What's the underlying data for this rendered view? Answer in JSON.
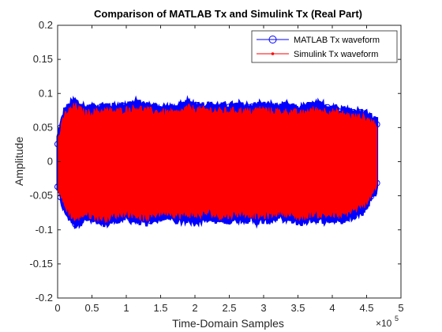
{
  "chart_data": {
    "type": "line",
    "title": "Comparison of MATLAB Tx and Simulink Tx (Real Part)",
    "xlabel": "Time-Domain Samples",
    "ylabel": "Amplitude",
    "x_exponent": "×10",
    "x_exponent_power": "5",
    "xlim": [
      0,
      500000
    ],
    "ylim": [
      -0.2,
      0.2
    ],
    "xticks": [
      0,
      50000,
      100000,
      150000,
      200000,
      250000,
      300000,
      350000,
      400000,
      450000,
      500000
    ],
    "xtick_labels": [
      "0",
      "0.5",
      "1",
      "1.5",
      "2",
      "2.5",
      "3",
      "3.5",
      "4",
      "4.5",
      "5"
    ],
    "yticks": [
      -0.2,
      -0.15,
      -0.1,
      -0.05,
      0,
      0.05,
      0.1,
      0.15,
      0.2
    ],
    "ytick_labels": [
      "-0.2",
      "-0.15",
      "-0.1",
      "-0.05",
      "0",
      "0.05",
      "0.1",
      "0.15",
      "0.2"
    ],
    "grid": false,
    "legend_position": "top-right",
    "series": [
      {
        "name": "MATLAB Tx waveform",
        "color": "#0000ff",
        "marker": "circle",
        "x_range": [
          0,
          465000
        ],
        "envelope_x": [
          0,
          10000,
          25000,
          40000,
          55000,
          70000,
          85000,
          100000,
          115000,
          130000,
          145000,
          160000,
          175000,
          190000,
          205000,
          220000,
          235000,
          250000,
          265000,
          280000,
          295000,
          310000,
          325000,
          340000,
          355000,
          370000,
          385000,
          400000,
          415000,
          430000,
          445000,
          465000
        ],
        "envelope_upper": [
          0.035,
          0.075,
          0.089,
          0.078,
          0.08,
          0.082,
          0.08,
          0.083,
          0.086,
          0.082,
          0.08,
          0.079,
          0.078,
          0.086,
          0.083,
          0.083,
          0.081,
          0.081,
          0.082,
          0.08,
          0.084,
          0.081,
          0.08,
          0.08,
          0.077,
          0.083,
          0.082,
          0.08,
          0.077,
          0.073,
          0.072,
          0.06
        ],
        "envelope_lower": [
          -0.04,
          -0.072,
          -0.092,
          -0.083,
          -0.088,
          -0.09,
          -0.085,
          -0.082,
          -0.086,
          -0.09,
          -0.083,
          -0.08,
          -0.086,
          -0.084,
          -0.086,
          -0.081,
          -0.087,
          -0.086,
          -0.082,
          -0.084,
          -0.087,
          -0.085,
          -0.08,
          -0.086,
          -0.089,
          -0.083,
          -0.085,
          -0.085,
          -0.086,
          -0.078,
          -0.073,
          -0.04
        ]
      },
      {
        "name": "Simulink Tx waveform",
        "color": "#ff0000",
        "marker": "point",
        "x_range": [
          0,
          465000
        ],
        "envelope_x": [
          0,
          10000,
          25000,
          40000,
          55000,
          70000,
          85000,
          100000,
          115000,
          130000,
          145000,
          160000,
          175000,
          190000,
          205000,
          220000,
          235000,
          250000,
          265000,
          280000,
          295000,
          310000,
          325000,
          340000,
          355000,
          370000,
          385000,
          400000,
          415000,
          430000,
          445000,
          465000
        ],
        "envelope_upper": [
          0.03,
          0.068,
          0.082,
          0.071,
          0.073,
          0.075,
          0.073,
          0.076,
          0.079,
          0.075,
          0.073,
          0.072,
          0.071,
          0.079,
          0.076,
          0.076,
          0.074,
          0.074,
          0.075,
          0.073,
          0.077,
          0.074,
          0.073,
          0.073,
          0.07,
          0.076,
          0.075,
          0.073,
          0.07,
          0.066,
          0.065,
          0.055
        ],
        "envelope_lower": [
          -0.035,
          -0.065,
          -0.085,
          -0.076,
          -0.081,
          -0.083,
          -0.078,
          -0.075,
          -0.079,
          -0.083,
          -0.076,
          -0.073,
          -0.079,
          -0.077,
          -0.079,
          -0.074,
          -0.08,
          -0.079,
          -0.075,
          -0.077,
          -0.08,
          -0.078,
          -0.073,
          -0.079,
          -0.082,
          -0.076,
          -0.078,
          -0.078,
          -0.079,
          -0.071,
          -0.066,
          -0.035
        ]
      }
    ]
  }
}
